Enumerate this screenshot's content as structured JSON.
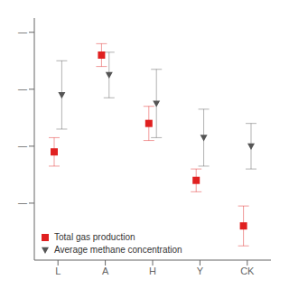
{
  "chart_data": {
    "type": "scatter",
    "categories": [
      "L",
      "A",
      "H",
      "Y",
      "CK"
    ],
    "series": [
      {
        "name": "Total gas production",
        "color": "#e02020",
        "marker": "square",
        "values": [
          0.38,
          0.72,
          0.48,
          0.28,
          0.12
        ],
        "error_low": [
          0.05,
          0.04,
          0.06,
          0.04,
          0.07
        ],
        "error_high": [
          0.05,
          0.04,
          0.06,
          0.04,
          0.07
        ]
      },
      {
        "name": "Average methane concentration",
        "color": "#555555",
        "marker": "triangle-down",
        "values": [
          0.58,
          0.65,
          0.55,
          0.43,
          0.4
        ],
        "error_low": [
          0.12,
          0.08,
          0.12,
          0.1,
          0.08
        ],
        "error_high": [
          0.12,
          0.08,
          0.12,
          0.1,
          0.08
        ]
      }
    ],
    "ylim": [
      0,
      0.85
    ],
    "yticks": [
      {
        "value": 0.2,
        "label": "—"
      },
      {
        "value": 0.4,
        "label": "—"
      },
      {
        "value": 0.6,
        "label": "—"
      },
      {
        "value": 0.8,
        "label": "—"
      }
    ],
    "legend": "lower left"
  }
}
